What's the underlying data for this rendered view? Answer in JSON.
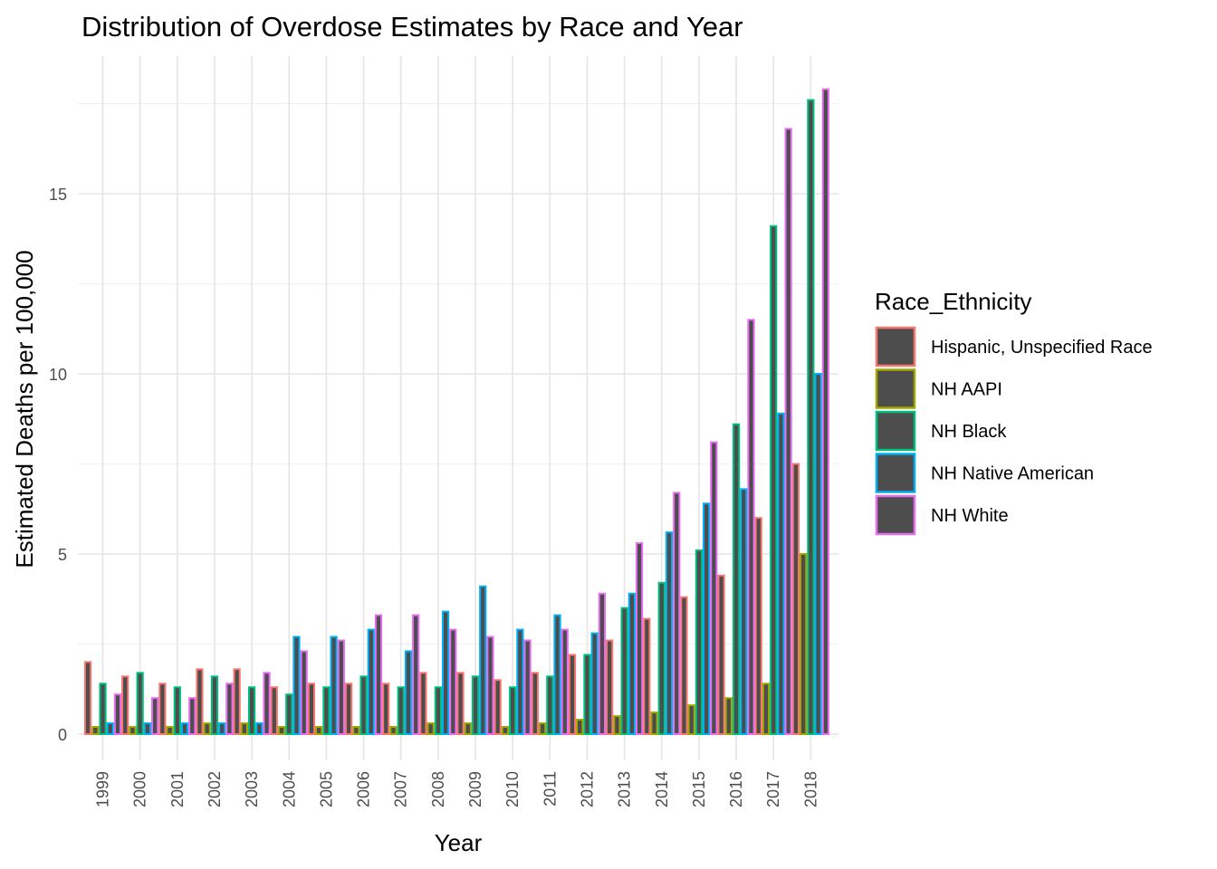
{
  "chart_data": {
    "type": "bar",
    "title": "Distribution of Overdose Estimates by Race and Year",
    "xlabel": "Year",
    "ylabel": "Estimated Deaths per 100,000",
    "ylim": [
      0,
      18
    ],
    "yticks": [
      0,
      5,
      10,
      15
    ],
    "grid": true,
    "legend_title": "Race_Ethnicity",
    "legend_position": "right",
    "categories": [
      "1999",
      "2000",
      "2001",
      "2002",
      "2003",
      "2004",
      "2005",
      "2006",
      "2007",
      "2008",
      "2009",
      "2010",
      "2011",
      "2012",
      "2013",
      "2014",
      "2015",
      "2016",
      "2017",
      "2018"
    ],
    "bar_fill": "#4d4d4d",
    "series": [
      {
        "name": "Hispanic, Unspecified Race",
        "color": "#F8766D",
        "values": [
          2.0,
          1.6,
          1.4,
          1.8,
          1.8,
          1.3,
          1.4,
          1.4,
          1.4,
          1.7,
          1.7,
          1.5,
          1.7,
          2.2,
          2.6,
          3.2,
          3.8,
          4.4,
          6.0,
          7.5
        ]
      },
      {
        "name": "NH AAPI",
        "color": "#A3A500",
        "values": [
          0.2,
          0.2,
          0.2,
          0.3,
          0.3,
          0.2,
          0.2,
          0.2,
          0.2,
          0.3,
          0.3,
          0.2,
          0.3,
          0.4,
          0.5,
          0.6,
          0.8,
          1.0,
          1.4,
          5.0
        ]
      },
      {
        "name": "NH Black",
        "color": "#00BF7D",
        "values": [
          1.4,
          1.7,
          1.3,
          1.6,
          1.3,
          1.1,
          1.3,
          1.6,
          1.3,
          1.3,
          1.6,
          1.3,
          1.6,
          2.2,
          3.5,
          4.2,
          5.1,
          8.6,
          14.1,
          17.6
        ]
      },
      {
        "name": "NH Native American",
        "color": "#00B0F6",
        "values": [
          0.3,
          0.3,
          0.3,
          0.3,
          0.3,
          2.7,
          2.7,
          2.9,
          2.3,
          3.4,
          4.1,
          2.9,
          3.3,
          2.8,
          3.9,
          5.6,
          6.4,
          6.8,
          8.9,
          10.0
        ]
      },
      {
        "name": "NH White",
        "color": "#E76BF3",
        "values": [
          1.1,
          1.0,
          1.0,
          1.4,
          1.7,
          2.3,
          2.6,
          3.3,
          3.3,
          2.9,
          2.7,
          2.6,
          2.9,
          3.9,
          5.3,
          6.7,
          8.1,
          11.5,
          16.8,
          17.9
        ]
      }
    ]
  }
}
